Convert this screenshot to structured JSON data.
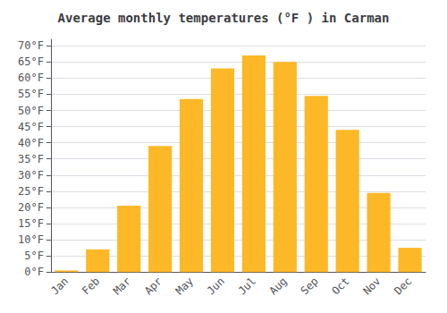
{
  "chart_data": {
    "type": "bar",
    "title": "Average monthly temperatures (°F ) in Carman",
    "categories": [
      "Jan",
      "Feb",
      "Mar",
      "Apr",
      "May",
      "Jun",
      "Jul",
      "Aug",
      "Sep",
      "Oct",
      "Nov",
      "Dec"
    ],
    "values": [
      0.5,
      7.0,
      20.5,
      39.0,
      53.5,
      63.0,
      67.0,
      65.0,
      54.5,
      44.0,
      24.5,
      7.5
    ],
    "color": "#FDB827",
    "ylim": [
      0,
      72
    ],
    "yticks": [
      {
        "value": 0,
        "label": "0°F"
      },
      {
        "value": 5,
        "label": "5°F"
      },
      {
        "value": 10,
        "label": "10°F"
      },
      {
        "value": 15,
        "label": "15°F"
      },
      {
        "value": 20,
        "label": "20°F"
      },
      {
        "value": 25,
        "label": "25°F"
      },
      {
        "value": 30,
        "label": "30°F"
      },
      {
        "value": 35,
        "label": "35°F"
      },
      {
        "value": 40,
        "label": "40°F"
      },
      {
        "value": 45,
        "label": "45°F"
      },
      {
        "value": 50,
        "label": "50°F"
      },
      {
        "value": 55,
        "label": "55°F"
      },
      {
        "value": 60,
        "label": "60°F"
      },
      {
        "value": 65,
        "label": "65°F"
      },
      {
        "value": 70,
        "label": "70°F"
      }
    ],
    "grid": true
  }
}
